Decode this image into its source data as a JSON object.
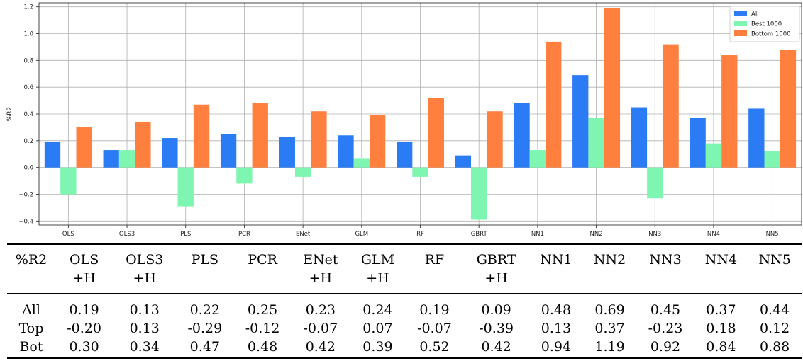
{
  "chart_data": {
    "type": "bar",
    "categories": [
      "OLS",
      "OLS3",
      "PLS",
      "PCR",
      "ENet",
      "GLM",
      "RF",
      "GBRT",
      "NN1",
      "NN2",
      "NN3",
      "NN4",
      "NN5"
    ],
    "series": [
      {
        "name": "All",
        "color": "#2a7bf4",
        "values": [
          0.19,
          0.13,
          0.22,
          0.25,
          0.23,
          0.24,
          0.19,
          0.09,
          0.48,
          0.69,
          0.45,
          0.37,
          0.44
        ]
      },
      {
        "name": "Best 1000",
        "color": "#7ef5b0",
        "values": [
          -0.2,
          0.13,
          -0.29,
          -0.12,
          -0.07,
          0.07,
          -0.07,
          -0.39,
          0.13,
          0.37,
          -0.23,
          0.18,
          0.12
        ]
      },
      {
        "name": "Bottom 1000",
        "color": "#ff7f3f",
        "values": [
          0.3,
          0.34,
          0.47,
          0.48,
          0.42,
          0.39,
          0.52,
          0.42,
          0.94,
          1.19,
          0.92,
          0.84,
          0.88
        ]
      }
    ],
    "ylabel": "%R2",
    "ylim": [
      -0.43,
      1.23
    ],
    "yticks": [
      "−0.4",
      "−0.2",
      "0.0",
      "0.2",
      "0.4",
      "0.6",
      "0.8",
      "1.0",
      "1.2"
    ],
    "grid": true,
    "legend": "top-right"
  },
  "table": {
    "corner": "%R2",
    "headers": [
      {
        "top": "OLS",
        "bottom": "+H"
      },
      {
        "top": "OLS3",
        "bottom": "+H"
      },
      {
        "top": "PLS",
        "bottom": ""
      },
      {
        "top": "PCR",
        "bottom": ""
      },
      {
        "top": "ENet",
        "bottom": "+H"
      },
      {
        "top": "GLM",
        "bottom": "+H"
      },
      {
        "top": "RF",
        "bottom": ""
      },
      {
        "top": "GBRT",
        "bottom": "+H"
      },
      {
        "top": "NN1",
        "bottom": ""
      },
      {
        "top": "NN2",
        "bottom": ""
      },
      {
        "top": "NN3",
        "bottom": ""
      },
      {
        "top": "NN4",
        "bottom": ""
      },
      {
        "top": "NN5",
        "bottom": ""
      }
    ],
    "rows": [
      {
        "label": "All",
        "values": [
          "0.19",
          "0.13",
          "0.22",
          "0.25",
          "0.23",
          "0.24",
          "0.19",
          "0.09",
          "0.48",
          "0.69",
          "0.45",
          "0.37",
          "0.44"
        ]
      },
      {
        "label": "Top",
        "values": [
          "-0.20",
          "0.13",
          "-0.29",
          "-0.12",
          "-0.07",
          "0.07",
          "-0.07",
          "-0.39",
          "0.13",
          "0.37",
          "-0.23",
          "0.18",
          "0.12"
        ]
      },
      {
        "label": "Bot",
        "values": [
          "0.30",
          "0.34",
          "0.47",
          "0.48",
          "0.42",
          "0.39",
          "0.52",
          "0.42",
          "0.94",
          "1.19",
          "0.92",
          "0.84",
          "0.88"
        ]
      }
    ]
  }
}
